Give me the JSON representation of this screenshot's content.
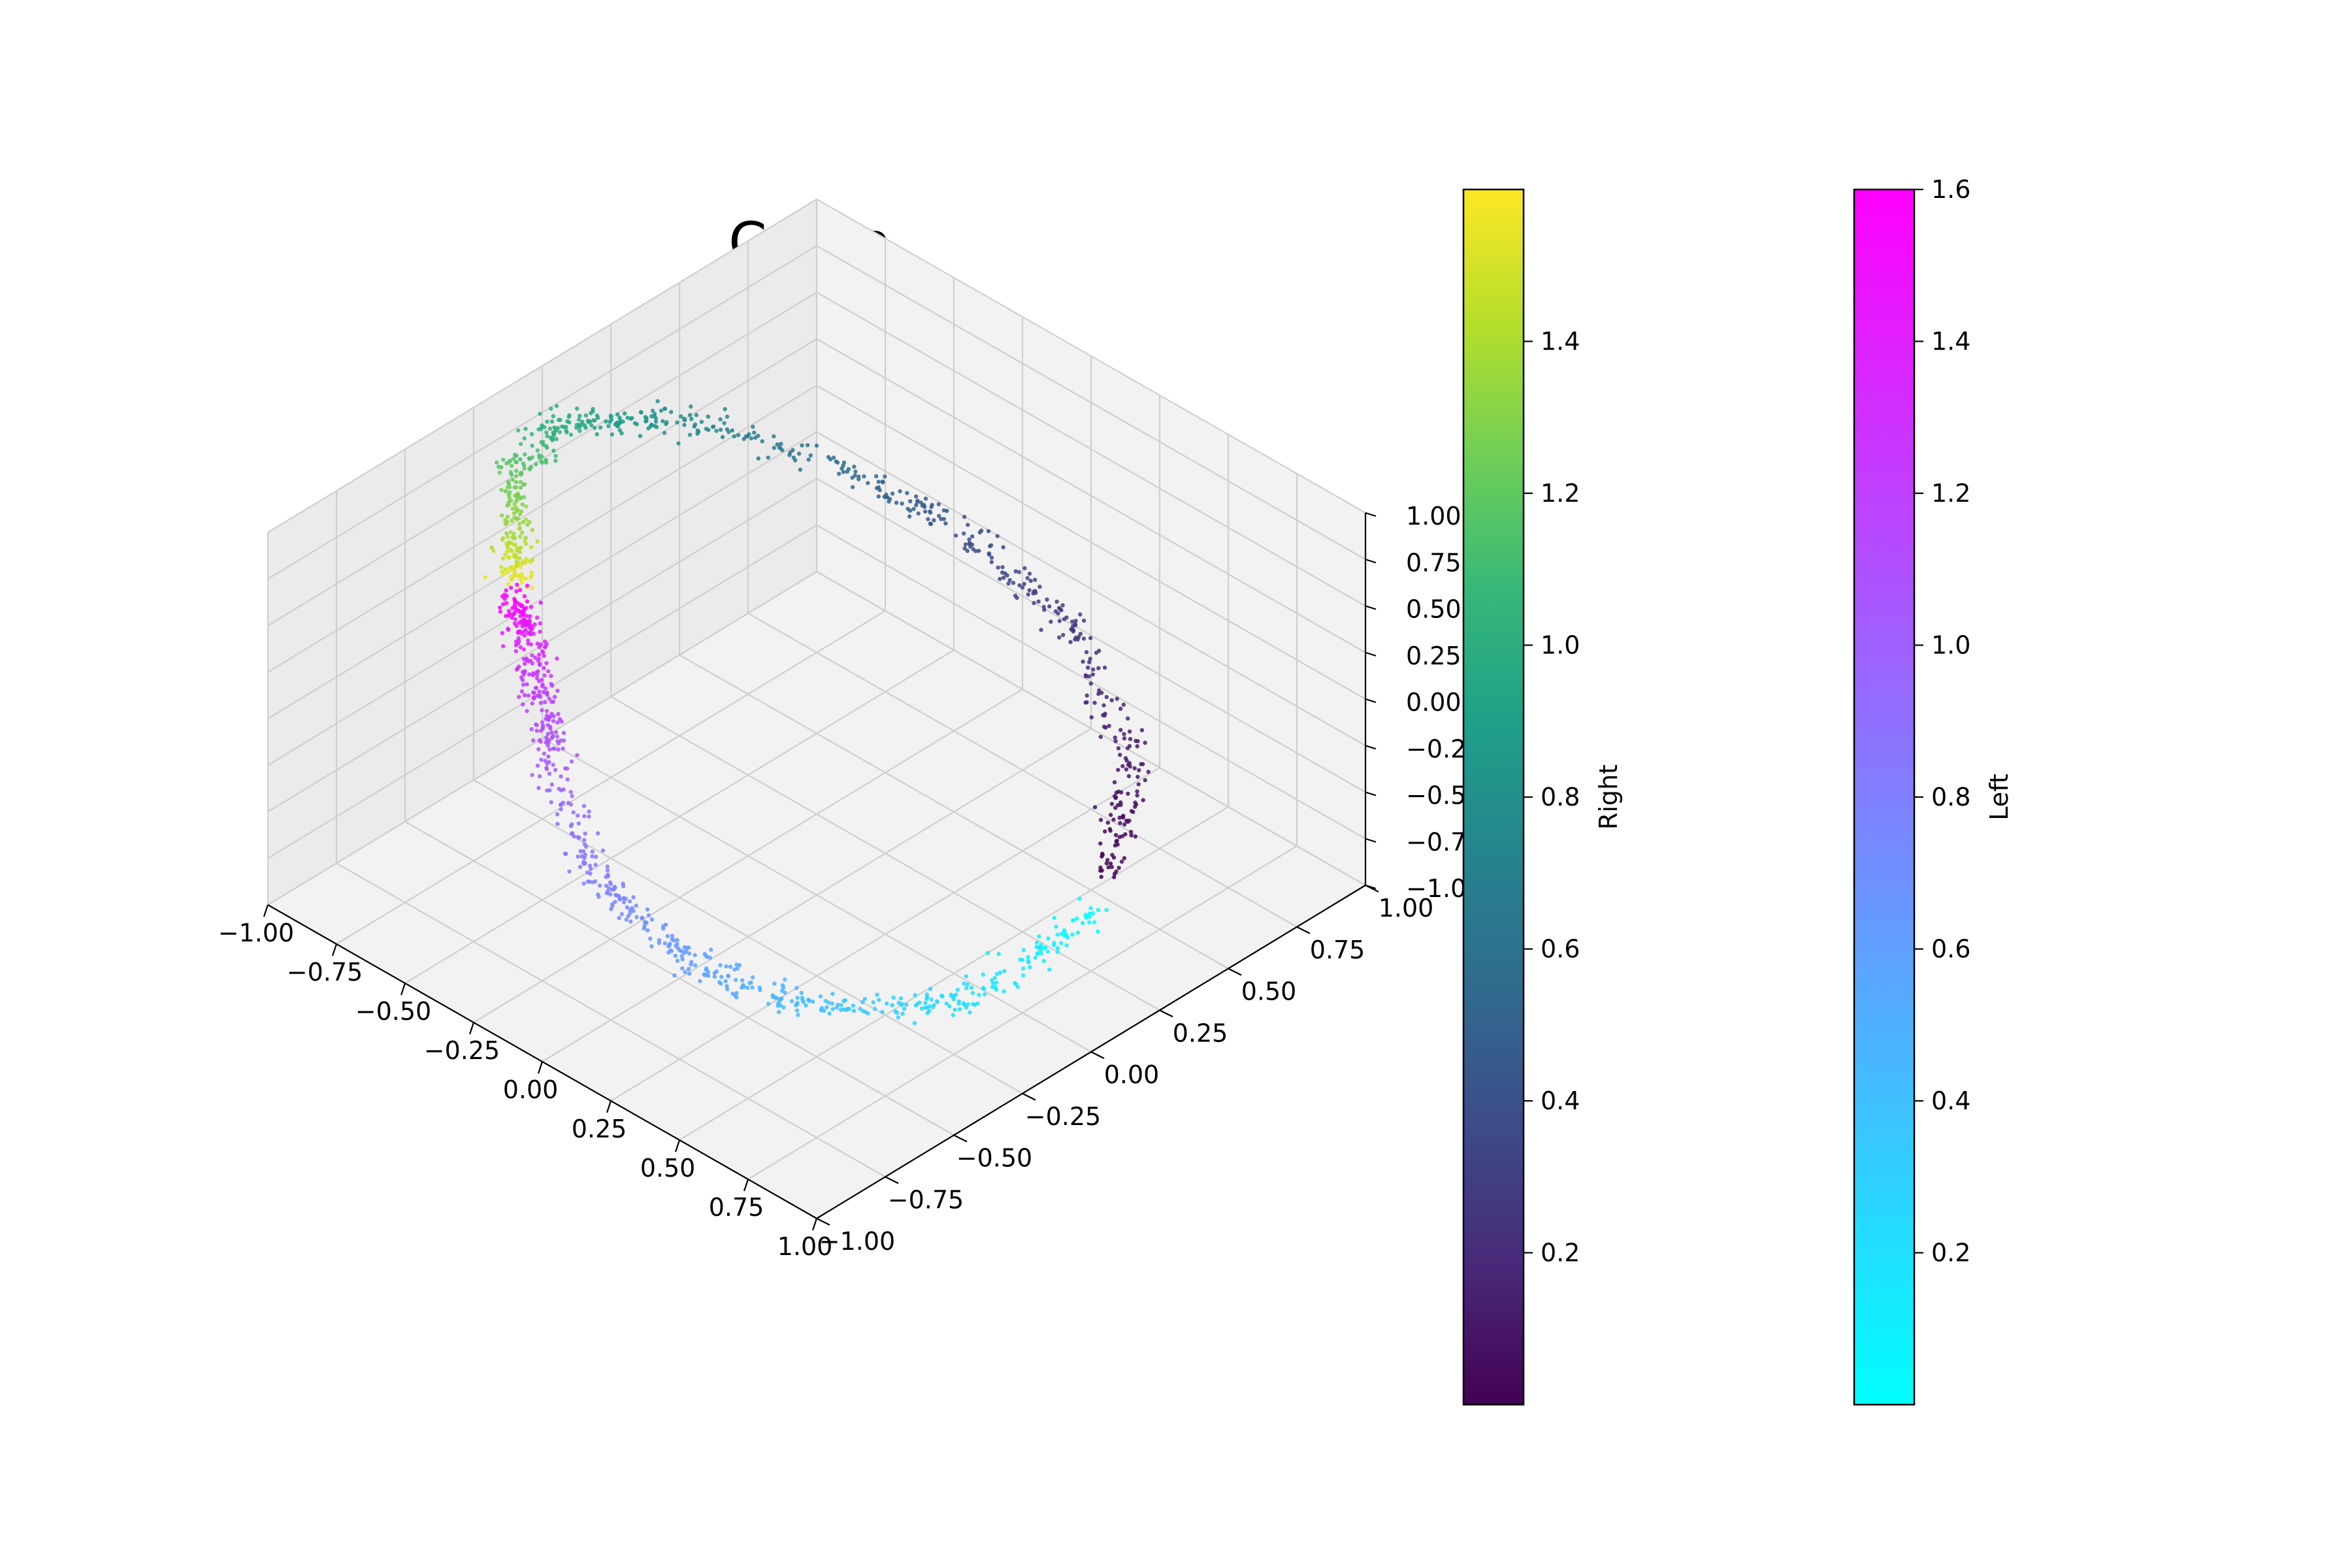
{
  "chart_data": [
    {
      "type": "scatter",
      "title": "Cebra",
      "projection": "3d",
      "xlim": [
        -1.0,
        1.0
      ],
      "ylim": [
        -1.0,
        1.0
      ],
      "zlim": [
        -1.0,
        1.0
      ],
      "x_ticks": [
        "−1.00",
        "−0.75",
        "−0.50",
        "−0.25",
        "0.00",
        "0.25",
        "0.50",
        "0.75",
        "1.00"
      ],
      "y_ticks": [
        "−1.00",
        "−0.75",
        "−0.50",
        "−0.25",
        "0.00",
        "0.25",
        "0.50",
        "0.75",
        "1.00"
      ],
      "z_ticks": [
        "−1.00",
        "−0.75",
        "−0.50",
        "−0.25",
        "0.00",
        "0.25",
        "0.50",
        "0.75",
        "1.00"
      ],
      "grid": true,
      "point_size": "small",
      "series": [
        {
          "colormap": "viridis",
          "value_range": [
            0.0,
            1.6
          ],
          "path": [
            {
              "x": 0.75,
              "y": 0.3,
              "z": -0.55,
              "c": 0.0
            },
            {
              "x": 0.55,
              "y": 0.6,
              "z": -0.4,
              "c": 0.1
            },
            {
              "x": 0.2,
              "y": 0.75,
              "z": -0.1,
              "c": 0.25
            },
            {
              "x": -0.15,
              "y": 0.7,
              "z": 0.2,
              "c": 0.4
            },
            {
              "x": -0.5,
              "y": 0.5,
              "z": 0.5,
              "c": 0.6
            },
            {
              "x": -0.75,
              "y": 0.2,
              "z": 0.75,
              "c": 0.8
            },
            {
              "x": -0.85,
              "y": -0.1,
              "z": 0.9,
              "c": 1.0
            },
            {
              "x": -0.75,
              "y": -0.35,
              "z": 0.95,
              "c": 1.2
            },
            {
              "x": -0.6,
              "y": -0.5,
              "z": 0.85,
              "c": 1.4
            },
            {
              "x": -0.55,
              "y": -0.55,
              "z": 0.7,
              "c": 1.58
            }
          ]
        },
        {
          "colormap": "cool",
          "value_range": [
            0.0,
            1.6
          ],
          "path": [
            {
              "x": 0.8,
              "y": 0.25,
              "z": -0.6,
              "c": 0.0
            },
            {
              "x": 0.75,
              "y": -0.2,
              "z": -0.75,
              "c": 0.2
            },
            {
              "x": 0.55,
              "y": -0.55,
              "z": -0.65,
              "c": 0.4
            },
            {
              "x": 0.3,
              "y": -0.75,
              "z": -0.45,
              "c": 0.6
            },
            {
              "x": 0.0,
              "y": -0.8,
              "z": -0.2,
              "c": 0.8
            },
            {
              "x": -0.25,
              "y": -0.7,
              "z": 0.05,
              "c": 1.0
            },
            {
              "x": -0.4,
              "y": -0.6,
              "z": 0.25,
              "c": 1.2
            },
            {
              "x": -0.5,
              "y": -0.55,
              "z": 0.45,
              "c": 1.4
            },
            {
              "x": -0.55,
              "y": -0.55,
              "z": 0.65,
              "c": 1.6
            }
          ]
        }
      ]
    },
    {
      "type": "colorbar",
      "label": "Right",
      "colormap": "viridis",
      "colors": [
        "#440154",
        "#482878",
        "#3e4989",
        "#31688e",
        "#26828e",
        "#1f9e89",
        "#35b779",
        "#6ece58",
        "#b5de2b",
        "#fde725"
      ],
      "range": [
        0.0,
        1.6
      ],
      "ticks": [
        "0.2",
        "0.4",
        "0.6",
        "0.8",
        "1.0",
        "1.2",
        "1.4"
      ]
    },
    {
      "type": "colorbar",
      "label": "Left",
      "colormap": "cool",
      "colors": [
        "#00ffff",
        "#ff00ff"
      ],
      "range": [
        0.0,
        1.6
      ],
      "ticks": [
        "0.2",
        "0.4",
        "0.6",
        "0.8",
        "1.0",
        "1.2",
        "1.4",
        "1.6"
      ]
    }
  ]
}
